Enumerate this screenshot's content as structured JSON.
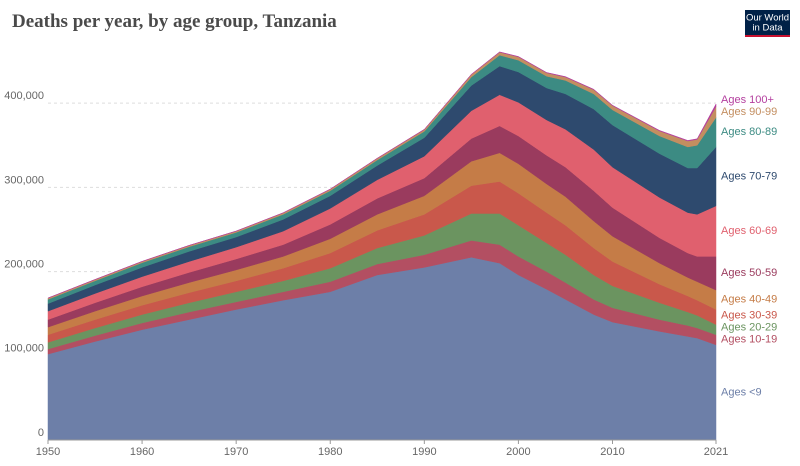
{
  "chart_data": {
    "type": "stacked_area",
    "title": "Deaths per year, by age group, Tanzania",
    "logo": [
      "Our World",
      "in Data"
    ],
    "x": [
      1950,
      1955,
      1960,
      1965,
      1970,
      1975,
      1980,
      1985,
      1990,
      1995,
      1998,
      2000,
      2003,
      2005,
      2008,
      2010,
      2015,
      2018,
      2019,
      2021
    ],
    "xlim": [
      1950,
      2021
    ],
    "xticks": [
      1950,
      1960,
      1970,
      1980,
      1990,
      2000,
      2010,
      2021
    ],
    "ylim": [
      0,
      475000
    ],
    "yticks": [
      0,
      {
        "value": 100000,
        "label": "100,000"
      },
      {
        "value": 200000,
        "label": "200,000"
      },
      {
        "value": 300000,
        "label": "300,000"
      },
      {
        "value": 400000,
        "label": "400,000"
      }
    ],
    "grid": true,
    "series": [
      {
        "name": "Ages <9",
        "color": "#6d7fa8",
        "values": [
          102000,
          117000,
          131000,
          143000,
          155000,
          166000,
          176000,
          196000,
          205000,
          217000,
          210000,
          196000,
          179000,
          167000,
          149000,
          140000,
          129000,
          123000,
          121000,
          113000
        ]
      },
      {
        "name": "Ages 10-19",
        "color": "#b34f62",
        "values": [
          6000,
          7000,
          8000,
          9000,
          9000,
          10000,
          12000,
          13000,
          15000,
          20000,
          22000,
          22000,
          21000,
          20000,
          18000,
          17000,
          14000,
          13000,
          12000,
          12000
        ]
      },
      {
        "name": "Ages 20-29",
        "color": "#6b9460",
        "values": [
          8000,
          9000,
          10000,
          11000,
          12000,
          13000,
          16000,
          19000,
          23000,
          32000,
          37000,
          37000,
          34000,
          33000,
          29000,
          26000,
          20000,
          16000,
          15000,
          12000
        ]
      },
      {
        "name": "Ages 30-39",
        "color": "#c9584b",
        "values": [
          9000,
          10000,
          11000,
          12000,
          13000,
          15000,
          18000,
          21000,
          25000,
          33000,
          38000,
          38000,
          36000,
          35000,
          32000,
          29000,
          22000,
          19000,
          18000,
          18000
        ]
      },
      {
        "name": "Ages 40-49",
        "color": "#c57c47",
        "values": [
          9000,
          10000,
          11000,
          12000,
          13000,
          14000,
          17000,
          19000,
          22000,
          29000,
          34000,
          35000,
          34000,
          34000,
          32000,
          30000,
          25000,
          22000,
          22000,
          23000
        ]
      },
      {
        "name": "Ages 50-59",
        "color": "#9a3b5e",
        "values": [
          9000,
          10000,
          11000,
          12000,
          13000,
          14000,
          17000,
          19000,
          21000,
          27000,
          32000,
          33000,
          34000,
          35000,
          36000,
          34000,
          30000,
          29000,
          30000,
          40000
        ]
      },
      {
        "name": "Ages 60-69",
        "color": "#e0606e",
        "values": [
          10000,
          11000,
          12000,
          13000,
          14000,
          16000,
          19000,
          22000,
          26000,
          33000,
          37000,
          40000,
          42000,
          45000,
          49000,
          48000,
          48000,
          48000,
          50000,
          60000
        ]
      },
      {
        "name": "Ages 70-79",
        "color": "#2e4a6e",
        "values": [
          9000,
          10000,
          11000,
          12000,
          12000,
          14000,
          15000,
          17000,
          22000,
          30000,
          34000,
          36000,
          38000,
          42000,
          48000,
          50000,
          52000,
          53000,
          55000,
          70000
        ]
      },
      {
        "name": "Ages 80-89",
        "color": "#3c8b83",
        "values": [
          5000,
          5000,
          5500,
          5500,
          5500,
          6000,
          6000,
          6500,
          7500,
          10000,
          13000,
          14000,
          14000,
          16000,
          18000,
          18000,
          21000,
          25000,
          27000,
          35000
        ]
      },
      {
        "name": "Ages 90-99",
        "color": "#c38e60",
        "values": [
          1500,
          1500,
          1500,
          1500,
          1500,
          1700,
          1800,
          2000,
          2200,
          3000,
          3500,
          4000,
          4000,
          4000,
          5000,
          5000,
          6000,
          7000,
          7000,
          13000
        ]
      },
      {
        "name": "Ages 100+",
        "color": "#b43f9f",
        "values": [
          200,
          200,
          200,
          200,
          200,
          200,
          200,
          200,
          300,
          300,
          400,
          400,
          400,
          500,
          500,
          500,
          600,
          700,
          700,
          3000
        ]
      }
    ]
  }
}
